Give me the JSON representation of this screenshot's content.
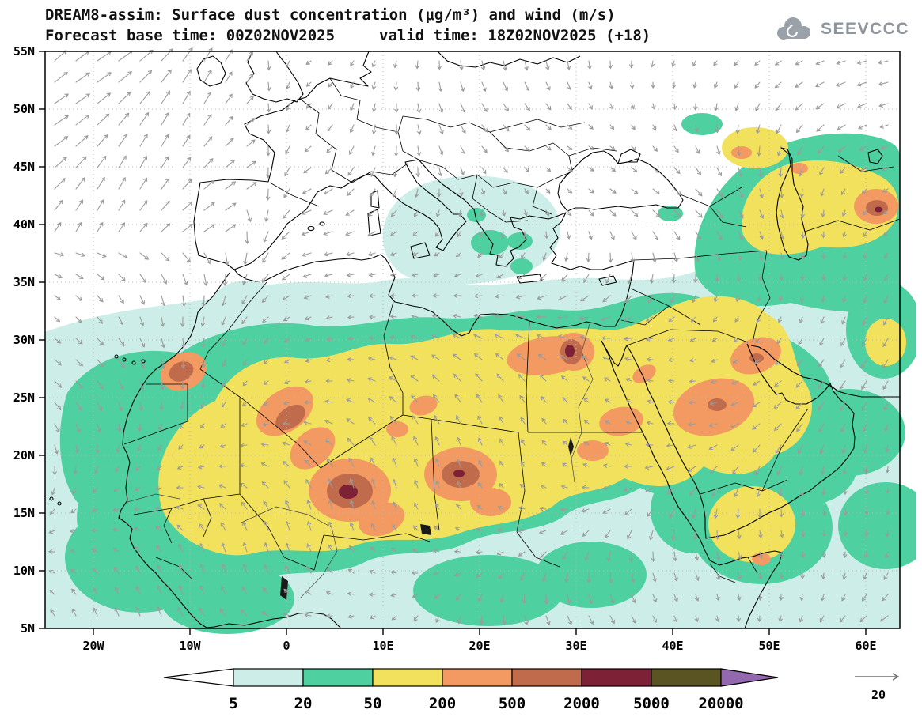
{
  "header": {
    "title": "DREAM8-assim: Surface dust concentration (μg/m³) and wind (m/s)",
    "subtitle_left": "Forecast base time: 00Z02NOV2025",
    "subtitle_right": "valid time: 18Z02NOV2025 (+18)",
    "logo_text": "SEEVCCC"
  },
  "axes": {
    "lat_ticks": [
      "55N",
      "50N",
      "45N",
      "40N",
      "35N",
      "30N",
      "25N",
      "20N",
      "15N",
      "10N",
      "5N"
    ],
    "lon_ticks": [
      "20W",
      "10W",
      "0",
      "10E",
      "20E",
      "30E",
      "40E",
      "50E",
      "60E"
    ]
  },
  "legend": {
    "labels": [
      "5",
      "20",
      "50",
      "200",
      "500",
      "2000",
      "5000",
      "20000"
    ],
    "colors": [
      "#ffffff",
      "#cdeee8",
      "#4fd0a0",
      "#f2e15c",
      "#f29a62",
      "#c06c4c",
      "#7c2136",
      "#5a5322",
      "#9468ae"
    ],
    "outline": "#000000"
  },
  "wind": {
    "arrow_color": "#9b9b9b",
    "reference_label": "20"
  },
  "chart_data": {
    "type": "filled-contour-map",
    "title": "DREAM8-assim: Surface dust concentration (μg/m³) and wind (m/s)",
    "model": "DREAM8-assim",
    "variable": "Surface dust concentration",
    "units": "μg/m³",
    "overlay_variable": "wind",
    "overlay_units": "m/s",
    "forecast_base_time": "00Z02NOV2025",
    "valid_time": "18Z02NOV2025",
    "lead_hours": 18,
    "contour_levels": [
      5,
      20,
      50,
      200,
      500,
      2000,
      5000,
      20000
    ],
    "level_colors": [
      "#ffffff",
      "#cdeee8",
      "#4fd0a0",
      "#f2e15c",
      "#f29a62",
      "#c06c4c",
      "#7c2136",
      "#5a5322",
      "#9468ae"
    ],
    "lat_tick_labels": [
      "5N",
      "10N",
      "15N",
      "20N",
      "25N",
      "30N",
      "35N",
      "40N",
      "45N",
      "50N",
      "55N"
    ],
    "lon_tick_labels": [
      "20W",
      "10W",
      "0",
      "10E",
      "20E",
      "30E",
      "40E",
      "50E",
      "60E"
    ],
    "wind_reference_ms": 20,
    "legend_position": "bottom"
  }
}
